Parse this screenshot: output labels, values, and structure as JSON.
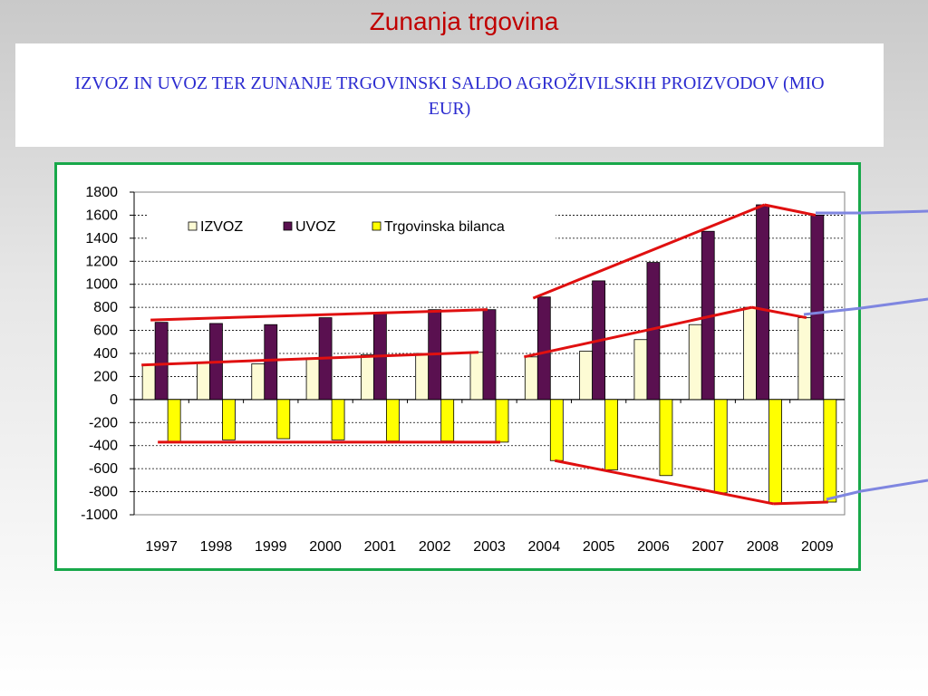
{
  "slide": {
    "title": "Zunanja trgovina",
    "subtitle": "IZVOZ IN UVOZ TER ZUNANJE TRGOVINSKI SALDO AGROŽIVILSKIH PROIZVODOV (MIO EUR)"
  },
  "colors": {
    "title": "#c00000",
    "subtitle": "#2b2bd0",
    "frame": "#18a84a",
    "izvoz": "#fdfbd4",
    "uvoz": "#5a1050",
    "bilanca": "#ffff00",
    "trend": "#e01010",
    "connector": "#7f86e0"
  },
  "chart_data": {
    "type": "bar",
    "categories": [
      "1997",
      "1998",
      "1999",
      "2000",
      "2001",
      "2002",
      "2003",
      "2004",
      "2005",
      "2006",
      "2007",
      "2008",
      "2009"
    ],
    "series": [
      {
        "name": "IZVOZ",
        "values": [
          300,
          320,
          310,
          350,
          390,
          400,
          410,
          370,
          420,
          520,
          650,
          800,
          710
        ]
      },
      {
        "name": "UVOZ",
        "values": [
          670,
          660,
          650,
          710,
          750,
          780,
          780,
          890,
          1030,
          1190,
          1460,
          1690,
          1600
        ]
      },
      {
        "name": "Trgovinska bilanca",
        "values": [
          -370,
          -350,
          -340,
          -350,
          -360,
          -360,
          -370,
          -530,
          -610,
          -660,
          -810,
          -900,
          -890
        ]
      }
    ],
    "y_ticks": [
      "1800",
      "1600",
      "1400",
      "1200",
      "1000",
      "800",
      "600",
      "400",
      "200",
      "0",
      "-200",
      "-400",
      "-600",
      "-800",
      "-1000"
    ],
    "ylim": [
      -1000,
      1800
    ],
    "grid": "dashed horizontal",
    "legend": "top-left"
  }
}
